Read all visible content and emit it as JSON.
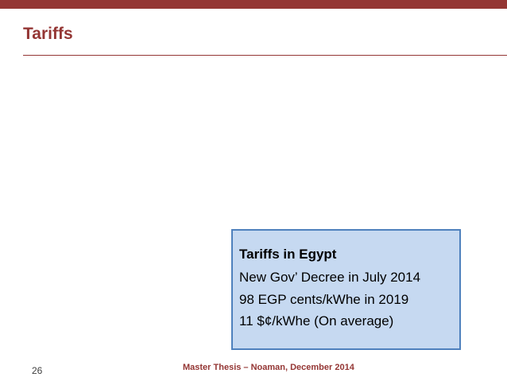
{
  "slide": {
    "title": "Tariffs",
    "page_number": "26",
    "footer": "Master Thesis – Noaman, December 2014"
  },
  "info_box": {
    "title": "Tariffs in Egypt",
    "lines": [
      "New Gov’ Decree in July 2014",
      "98 EGP cents/kWhe in 2019",
      "11 $¢/kWhe (On average)"
    ]
  },
  "colors": {
    "accent": "#943634",
    "box_fill": "#c6d9f1",
    "box_border": "#4f81bd"
  }
}
